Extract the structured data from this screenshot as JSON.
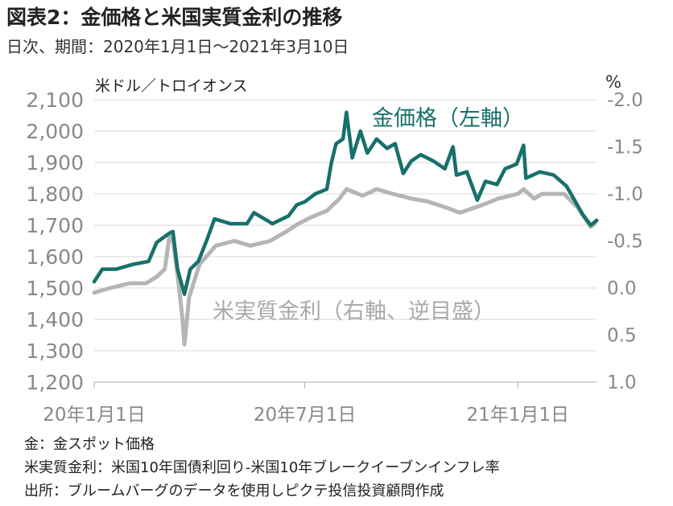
{
  "header": {
    "title": "図表2：金価格と米国実質金利の推移",
    "subtitle": "日次、期間：2020年1月1日～2021年3月10日"
  },
  "chart_data": {
    "type": "line",
    "left_axis": {
      "unit": "米ドル／トロイオンス",
      "ticks": [
        "2,100",
        "2,000",
        "1,900",
        "1,800",
        "1,700",
        "1,600",
        "1,500",
        "1,400",
        "1,300",
        "1,200"
      ],
      "ylim": [
        1200,
        2100
      ]
    },
    "right_axis": {
      "unit": "%",
      "inverted": true,
      "ticks": [
        "-2.0",
        "-1.5",
        "-1.0",
        "-0.5",
        "0.0",
        "0.5",
        "1.0"
      ],
      "ylim": [
        1.0,
        -2.0
      ]
    },
    "x_ticks": [
      {
        "label": "20年1月1日",
        "date": "2020-01-01"
      },
      {
        "label": "20年7月1日",
        "date": "2020-07-01"
      },
      {
        "label": "21年1月1日",
        "date": "2021-01-01"
      }
    ],
    "x_range": [
      "2020-01-01",
      "2021-03-10"
    ],
    "grid": true,
    "series": [
      {
        "name": "金価格（左軸）",
        "axis": "left",
        "color": "#17706b",
        "points": [
          [
            "2020-01-01",
            1520
          ],
          [
            "2020-01-08",
            1560
          ],
          [
            "2020-01-20",
            1560
          ],
          [
            "2020-02-03",
            1575
          ],
          [
            "2020-02-17",
            1585
          ],
          [
            "2020-02-24",
            1645
          ],
          [
            "2020-03-06",
            1675
          ],
          [
            "2020-03-09",
            1680
          ],
          [
            "2020-03-13",
            1560
          ],
          [
            "2020-03-19",
            1480
          ],
          [
            "2020-03-24",
            1560
          ],
          [
            "2020-03-31",
            1585
          ],
          [
            "2020-04-07",
            1650
          ],
          [
            "2020-04-14",
            1720
          ],
          [
            "2020-04-28",
            1705
          ],
          [
            "2020-05-12",
            1705
          ],
          [
            "2020-05-18",
            1740
          ],
          [
            "2020-05-25",
            1725
          ],
          [
            "2020-06-03",
            1705
          ],
          [
            "2020-06-17",
            1730
          ],
          [
            "2020-06-24",
            1765
          ],
          [
            "2020-07-01",
            1775
          ],
          [
            "2020-07-10",
            1800
          ],
          [
            "2020-07-20",
            1815
          ],
          [
            "2020-07-24",
            1900
          ],
          [
            "2020-07-28",
            1960
          ],
          [
            "2020-08-03",
            1975
          ],
          [
            "2020-08-06",
            2060
          ],
          [
            "2020-08-11",
            1915
          ],
          [
            "2020-08-18",
            2000
          ],
          [
            "2020-08-24",
            1930
          ],
          [
            "2020-09-01",
            1975
          ],
          [
            "2020-09-10",
            1945
          ],
          [
            "2020-09-17",
            1960
          ],
          [
            "2020-09-24",
            1865
          ],
          [
            "2020-10-01",
            1905
          ],
          [
            "2020-10-09",
            1925
          ],
          [
            "2020-10-20",
            1905
          ],
          [
            "2020-10-30",
            1880
          ],
          [
            "2020-11-06",
            1950
          ],
          [
            "2020-11-09",
            1860
          ],
          [
            "2020-11-18",
            1870
          ],
          [
            "2020-11-27",
            1780
          ],
          [
            "2020-12-04",
            1840
          ],
          [
            "2020-12-14",
            1830
          ],
          [
            "2020-12-21",
            1880
          ],
          [
            "2020-12-31",
            1895
          ],
          [
            "2021-01-06",
            1955
          ],
          [
            "2021-01-08",
            1850
          ],
          [
            "2021-01-20",
            1870
          ],
          [
            "2021-02-01",
            1860
          ],
          [
            "2021-02-12",
            1825
          ],
          [
            "2021-02-19",
            1780
          ],
          [
            "2021-02-26",
            1735
          ],
          [
            "2021-03-05",
            1700
          ],
          [
            "2021-03-10",
            1715
          ]
        ]
      },
      {
        "name": "米実質金利（右軸、逆目盛）",
        "axis": "right",
        "color": "#b5b5b5",
        "points": [
          [
            "2020-01-01",
            0.05
          ],
          [
            "2020-01-15",
            0.0
          ],
          [
            "2020-02-01",
            -0.05
          ],
          [
            "2020-02-15",
            -0.05
          ],
          [
            "2020-02-24",
            -0.12
          ],
          [
            "2020-03-02",
            -0.2
          ],
          [
            "2020-03-06",
            -0.55
          ],
          [
            "2020-03-09",
            -0.5
          ],
          [
            "2020-03-13",
            -0.15
          ],
          [
            "2020-03-17",
            0.3
          ],
          [
            "2020-03-19",
            0.6
          ],
          [
            "2020-03-23",
            0.1
          ],
          [
            "2020-04-01",
            -0.25
          ],
          [
            "2020-04-15",
            -0.45
          ],
          [
            "2020-05-01",
            -0.5
          ],
          [
            "2020-05-15",
            -0.45
          ],
          [
            "2020-06-01",
            -0.5
          ],
          [
            "2020-06-15",
            -0.6
          ],
          [
            "2020-06-25",
            -0.68
          ],
          [
            "2020-07-06",
            -0.75
          ],
          [
            "2020-07-20",
            -0.82
          ],
          [
            "2020-07-31",
            -0.95
          ],
          [
            "2020-08-06",
            -1.05
          ],
          [
            "2020-08-20",
            -0.98
          ],
          [
            "2020-09-01",
            -1.05
          ],
          [
            "2020-09-15",
            -1.0
          ],
          [
            "2020-10-01",
            -0.95
          ],
          [
            "2020-10-15",
            -0.92
          ],
          [
            "2020-11-01",
            -0.85
          ],
          [
            "2020-11-12",
            -0.8
          ],
          [
            "2020-12-01",
            -0.88
          ],
          [
            "2020-12-15",
            -0.95
          ],
          [
            "2021-01-01",
            -1.0
          ],
          [
            "2021-01-06",
            -1.05
          ],
          [
            "2021-01-15",
            -0.95
          ],
          [
            "2021-01-22",
            -1.0
          ],
          [
            "2021-02-01",
            -1.0
          ],
          [
            "2021-02-10",
            -1.0
          ],
          [
            "2021-02-22",
            -0.85
          ],
          [
            "2021-03-01",
            -0.72
          ],
          [
            "2021-03-05",
            -0.65
          ],
          [
            "2021-03-08",
            -0.68
          ],
          [
            "2021-03-10",
            -0.72
          ]
        ]
      }
    ]
  },
  "notes": [
    "金：金スポット価格",
    "米実質金利：米国10年国債利回り-米国10年ブレークイーブンインフレ率",
    "出所：ブルームバーグのデータを使用しピクテ投信投資顧問作成"
  ]
}
